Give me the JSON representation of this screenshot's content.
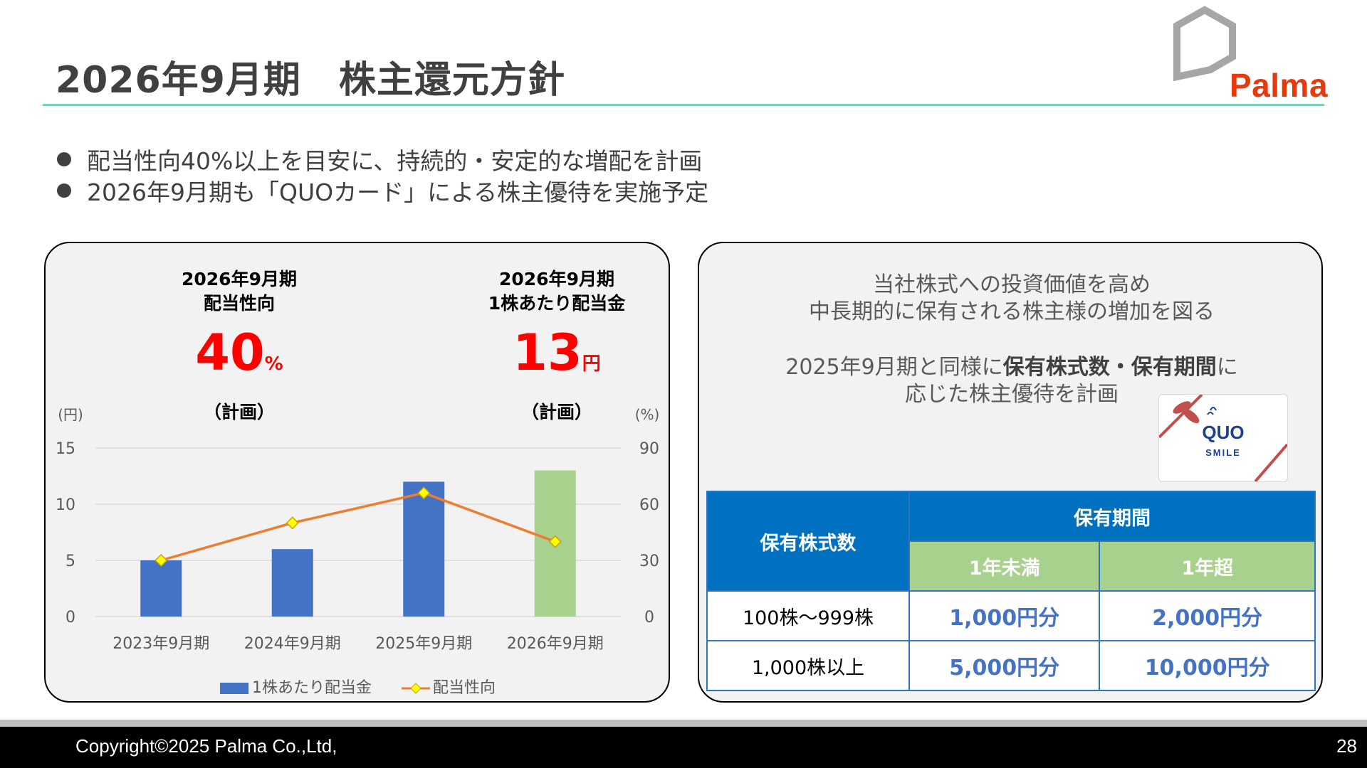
{
  "header": {
    "title": "2026年9月期　株主還元方針",
    "logo_text": "Palma"
  },
  "bullets": [
    "配当性向40%以上を目安に、持続的・安定的な増配を計画",
    "2026年9月期も「QUOカード」による株主優待を実施予定"
  ],
  "kpis": [
    {
      "title1": "2026年9月期",
      "title2": "配当性向",
      "value": "40",
      "unit": "%",
      "note": "（計画）"
    },
    {
      "title1": "2026年9月期",
      "title2": "1株あたり配当金",
      "value": "13",
      "unit": "円",
      "note": "（計画）"
    }
  ],
  "chart_data": {
    "type": "bar",
    "categories": [
      "2023年9月期",
      "2024年9月期",
      "2025年9月期",
      "2026年9月期"
    ],
    "series": [
      {
        "name": "1株あたり配当金",
        "type": "bar",
        "axis": "left",
        "values": [
          5,
          6,
          12,
          13
        ],
        "colors": [
          "#4472c4",
          "#4472c4",
          "#4472c4",
          "#a9d18e"
        ]
      },
      {
        "name": "配当性向",
        "type": "line",
        "axis": "right",
        "values": [
          30,
          50,
          66,
          40
        ],
        "color": "#ed7d31",
        "marker_color": "#ffff00"
      }
    ],
    "ylabel_left": "(円)",
    "ylabel_right": "(%)",
    "ylim_left": [
      0,
      15
    ],
    "ylim_right": [
      0,
      90
    ],
    "yticks_left": [
      "0",
      "5",
      "10",
      "15"
    ],
    "yticks_right": [
      "0",
      "30",
      "60",
      "90"
    ],
    "grid": true,
    "legend_position": "bottom"
  },
  "right_panel": {
    "line1": "当社株式への投資価値を高め",
    "line2": "中長期的に保有される株主様の増加を図る",
    "line3_pre": "2025年9月期と同様に",
    "line3_bold": "保有株式数・保有期間",
    "line3_post": "に",
    "line4": "応じた株主優待を計画",
    "card_brand": "QUO",
    "card_sub": "SMILE"
  },
  "benefit_table": {
    "col_header_shares": "保有株式数",
    "col_header_period": "保有期間",
    "period_lt1": "1年未満",
    "period_gt1": "1年超",
    "rows": [
      {
        "shares": "100株～999株",
        "lt1": "1,000円分",
        "gt1": "2,000円分"
      },
      {
        "shares": "1,000株以上",
        "lt1": "5,000円分",
        "gt1": "10,000円分"
      }
    ]
  },
  "footer": {
    "copyright": "Copyright©2025 Palma Co.,Ltd,",
    "page": "28"
  }
}
